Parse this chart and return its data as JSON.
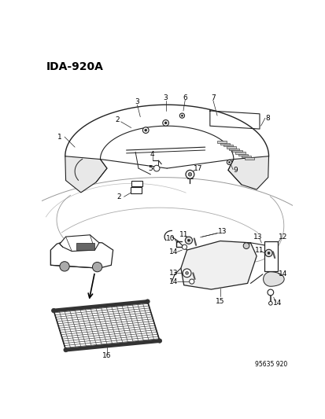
{
  "title": "IDA-920A",
  "figure_id": "95635 920",
  "bg_color": "#ffffff",
  "text_color": "#000000",
  "line_color": "#222222"
}
